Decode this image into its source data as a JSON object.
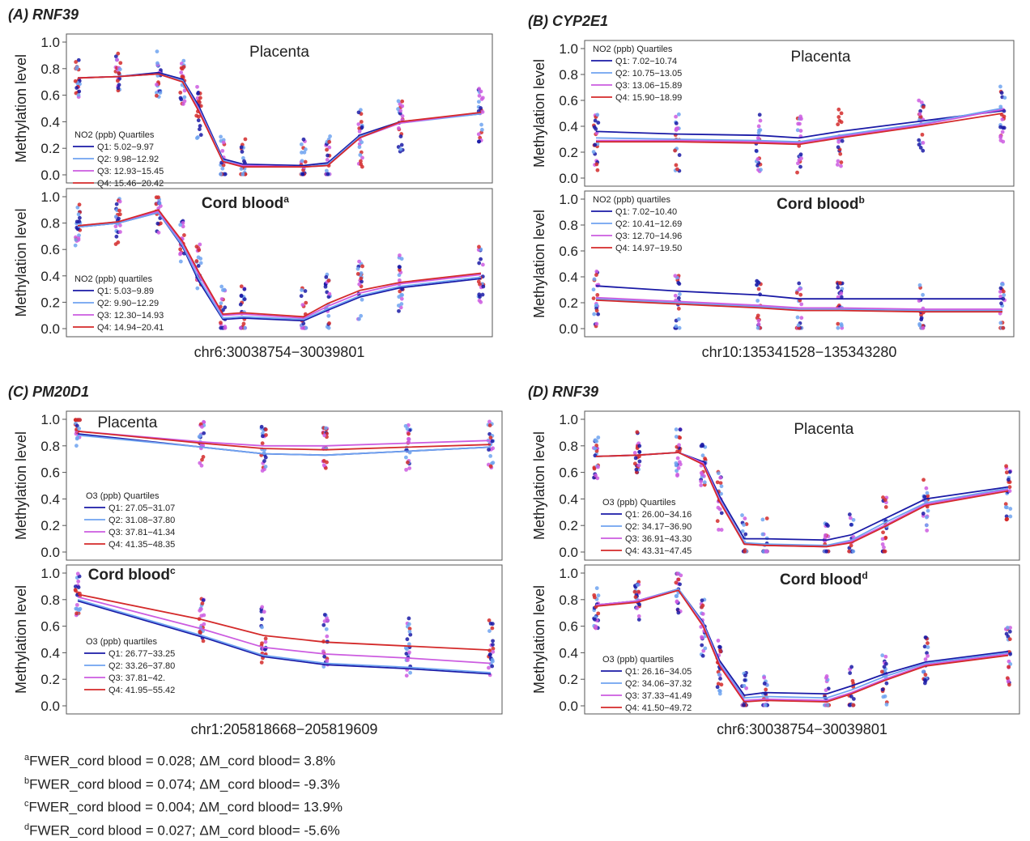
{
  "panels": [
    {
      "title": "(A) RNF39"
    },
    {
      "title": "(B) CYP2E1"
    },
    {
      "title": "(C) PM20D1"
    },
    {
      "title": "(D) RNF39"
    }
  ],
  "footnotes": [
    {
      "sup": "a",
      "text": "FWER_cord blood = 0.028; ΔM_cord blood= 3.8%"
    },
    {
      "sup": "b",
      "text": "FWER_cord blood = 0.074; ΔM_cord blood= -9.3%"
    },
    {
      "sup": "c",
      "text": "FWER_cord blood = 0.004; ΔM_cord blood= 13.9%"
    },
    {
      "sup": "d",
      "text": "FWER_cord blood = 0.027; ΔM_cord blood= -5.6%"
    }
  ],
  "colors": {
    "Q1": "#1a1aa6",
    "Q2": "#6fa3f0",
    "Q3": "#cc5ce0",
    "Q4": "#d42a2a"
  },
  "chart_data": [
    {
      "type": "line",
      "panel": "A",
      "subplot": "top",
      "title": "Placenta",
      "title_bold": false,
      "title_sup": "",
      "ylabel": "Methylation level",
      "ylim": [
        0,
        1.0
      ],
      "yticks": [
        0.0,
        0.2,
        0.4,
        0.6,
        0.8,
        1.0
      ],
      "xlabel": "",
      "legend_title": "NO2 (ppb) Quartiles",
      "legend_loc": "left",
      "x": [
        0.0,
        0.1,
        0.2,
        0.26,
        0.3,
        0.36,
        0.41,
        0.56,
        0.62,
        0.7,
        0.8,
        1.0
      ],
      "series": [
        {
          "name": "Q1: 5.02−9.97",
          "values": [
            0.73,
            0.74,
            0.77,
            0.72,
            0.52,
            0.12,
            0.08,
            0.07,
            0.09,
            0.3,
            0.4,
            0.46
          ]
        },
        {
          "name": "Q2: 9.98−12.92",
          "values": [
            0.73,
            0.74,
            0.76,
            0.71,
            0.5,
            0.11,
            0.07,
            0.06,
            0.08,
            0.29,
            0.39,
            0.46
          ]
        },
        {
          "name": "Q3: 12.93−15.45",
          "values": [
            0.73,
            0.74,
            0.76,
            0.7,
            0.49,
            0.1,
            0.07,
            0.06,
            0.07,
            0.28,
            0.39,
            0.47
          ]
        },
        {
          "name": "Q4: 15.46−20.42",
          "values": [
            0.73,
            0.74,
            0.76,
            0.7,
            0.48,
            0.1,
            0.06,
            0.06,
            0.07,
            0.28,
            0.4,
            0.47
          ]
        }
      ]
    },
    {
      "type": "line",
      "panel": "A",
      "subplot": "bottom",
      "title": "Cord blood",
      "title_bold": true,
      "title_sup": "a",
      "ylabel": "Methylation level",
      "ylim": [
        0,
        1.0
      ],
      "yticks": [
        0.0,
        0.2,
        0.4,
        0.6,
        0.8,
        1.0
      ],
      "xlabel": "chr6:30038754−30039801",
      "legend_title": "NO2 (ppb) quartiles",
      "legend_loc": "left",
      "x": [
        0.0,
        0.1,
        0.2,
        0.26,
        0.3,
        0.36,
        0.41,
        0.56,
        0.62,
        0.7,
        0.8,
        1.0
      ],
      "series": [
        {
          "name": "Q1: 5.03−9.89",
          "values": [
            0.77,
            0.8,
            0.88,
            0.62,
            0.36,
            0.07,
            0.08,
            0.06,
            0.14,
            0.24,
            0.31,
            0.38
          ]
        },
        {
          "name": "Q2: 9.90−12.29",
          "values": [
            0.77,
            0.8,
            0.88,
            0.63,
            0.38,
            0.08,
            0.09,
            0.07,
            0.15,
            0.25,
            0.32,
            0.39
          ]
        },
        {
          "name": "Q3: 12.30−14.93",
          "values": [
            0.78,
            0.81,
            0.89,
            0.65,
            0.41,
            0.1,
            0.11,
            0.08,
            0.17,
            0.27,
            0.34,
            0.41
          ]
        },
        {
          "name": "Q4: 14.94−20.41",
          "values": [
            0.78,
            0.81,
            0.9,
            0.66,
            0.43,
            0.11,
            0.12,
            0.09,
            0.19,
            0.29,
            0.35,
            0.42
          ]
        }
      ]
    },
    {
      "type": "line",
      "panel": "B",
      "subplot": "top",
      "title": "Placenta",
      "title_bold": false,
      "title_sup": "",
      "ylabel": "Methylation level",
      "ylim": [
        0,
        1.0
      ],
      "yticks": [
        0.0,
        0.2,
        0.4,
        0.6,
        0.8,
        1.0
      ],
      "xlabel": "",
      "legend_title": "NO2 (ppb) Quartiles",
      "legend_loc": "top-left",
      "x": [
        0.0,
        0.2,
        0.4,
        0.5,
        0.6,
        0.8,
        1.0
      ],
      "series": [
        {
          "name": "Q1: 7.02−10.74",
          "values": [
            0.36,
            0.34,
            0.33,
            0.31,
            0.36,
            0.44,
            0.52
          ]
        },
        {
          "name": "Q2: 10.75−13.05",
          "values": [
            0.31,
            0.3,
            0.29,
            0.28,
            0.33,
            0.42,
            0.54
          ]
        },
        {
          "name": "Q3: 13.06−15.89",
          "values": [
            0.29,
            0.29,
            0.28,
            0.27,
            0.32,
            0.41,
            0.53
          ]
        },
        {
          "name": "Q4: 15.90−18.99",
          "values": [
            0.28,
            0.28,
            0.27,
            0.26,
            0.31,
            0.4,
            0.5
          ]
        }
      ]
    },
    {
      "type": "line",
      "panel": "B",
      "subplot": "bottom",
      "title": "Cord blood",
      "title_bold": true,
      "title_sup": "b",
      "ylabel": "Methylation level",
      "ylim": [
        0,
        1.0
      ],
      "yticks": [
        0.0,
        0.2,
        0.4,
        0.6,
        0.8,
        1.0
      ],
      "xlabel": "chr10:135341528−135343280",
      "legend_title": "NO2 (ppb) quartiles",
      "legend_loc": "top-left",
      "x": [
        0.0,
        0.2,
        0.4,
        0.5,
        0.6,
        0.8,
        1.0
      ],
      "series": [
        {
          "name": "Q1: 7.02−10.40",
          "values": [
            0.33,
            0.29,
            0.26,
            0.23,
            0.23,
            0.23,
            0.23
          ]
        },
        {
          "name": "Q2: 10.41−12.69",
          "values": [
            0.23,
            0.2,
            0.17,
            0.15,
            0.15,
            0.14,
            0.14
          ]
        },
        {
          "name": "Q3: 12.70−14.96",
          "values": [
            0.24,
            0.21,
            0.18,
            0.16,
            0.16,
            0.15,
            0.15
          ]
        },
        {
          "name": "Q4: 14.97−19.50",
          "values": [
            0.22,
            0.19,
            0.16,
            0.14,
            0.14,
            0.13,
            0.13
          ]
        }
      ]
    },
    {
      "type": "line",
      "panel": "C",
      "subplot": "top",
      "title": "Placenta",
      "title_bold": false,
      "title_sup": "",
      "ylabel": "Methylation level",
      "ylim": [
        0,
        1.0
      ],
      "yticks": [
        0.0,
        0.2,
        0.4,
        0.6,
        0.8,
        1.0
      ],
      "xlabel": "",
      "legend_title": "O3 (ppb) Quartiles",
      "legend_loc": "left",
      "x": [
        0.0,
        0.3,
        0.45,
        0.6,
        0.8,
        1.0
      ],
      "series": [
        {
          "name": "Q1: 27.05−31.07",
          "values": [
            0.89,
            0.79,
            0.74,
            0.73,
            0.76,
            0.79
          ]
        },
        {
          "name": "Q2: 31.08−37.80",
          "values": [
            0.88,
            0.79,
            0.74,
            0.73,
            0.76,
            0.79
          ]
        },
        {
          "name": "Q3: 37.81−41.34",
          "values": [
            0.91,
            0.83,
            0.8,
            0.8,
            0.82,
            0.84
          ]
        },
        {
          "name": "Q4: 41.35−48.35",
          "values": [
            0.91,
            0.82,
            0.78,
            0.77,
            0.79,
            0.81
          ]
        }
      ]
    },
    {
      "type": "line",
      "panel": "C",
      "subplot": "bottom",
      "title": "Cord blood",
      "title_bold": true,
      "title_sup": "c",
      "ylabel": "Methylation level",
      "ylim": [
        0,
        1.0
      ],
      "yticks": [
        0.0,
        0.2,
        0.4,
        0.6,
        0.8,
        1.0
      ],
      "xlabel": "chr1:205818668−205819609",
      "legend_title": "O3 (ppb) quartiles",
      "legend_loc": "left",
      "x": [
        0.0,
        0.3,
        0.45,
        0.6,
        0.8,
        1.0
      ],
      "series": [
        {
          "name": "Q1: 26.77−33.25",
          "values": [
            0.79,
            0.52,
            0.37,
            0.31,
            0.28,
            0.24
          ]
        },
        {
          "name": "Q2: 33.26−37.80",
          "values": [
            0.8,
            0.53,
            0.38,
            0.32,
            0.29,
            0.25
          ]
        },
        {
          "name": "Q3: 37.81−42.",
          "values": [
            0.82,
            0.58,
            0.44,
            0.39,
            0.36,
            0.32
          ]
        },
        {
          "name": "Q4: 41.95−55.42",
          "values": [
            0.84,
            0.65,
            0.53,
            0.48,
            0.45,
            0.42
          ]
        }
      ]
    },
    {
      "type": "line",
      "panel": "D",
      "subplot": "top",
      "title": "Placenta",
      "title_bold": false,
      "title_sup": "",
      "ylabel": "Methylation level",
      "ylim": [
        0,
        1.0
      ],
      "yticks": [
        0.0,
        0.2,
        0.4,
        0.6,
        0.8,
        1.0
      ],
      "xlabel": "",
      "legend_title": "O3 (ppb) Quartiles",
      "legend_loc": "left",
      "x": [
        0.0,
        0.1,
        0.2,
        0.26,
        0.3,
        0.36,
        0.41,
        0.56,
        0.62,
        0.7,
        0.8,
        1.0
      ],
      "series": [
        {
          "name": "Q1: 26.00−34.16",
          "values": [
            0.72,
            0.73,
            0.75,
            0.68,
            0.42,
            0.1,
            0.1,
            0.09,
            0.13,
            0.25,
            0.4,
            0.49
          ]
        },
        {
          "name": "Q2: 34.17−36.90",
          "values": [
            0.72,
            0.73,
            0.75,
            0.67,
            0.4,
            0.07,
            0.06,
            0.05,
            0.09,
            0.22,
            0.37,
            0.48
          ]
        },
        {
          "name": "Q3: 36.91−43.30",
          "values": [
            0.72,
            0.73,
            0.75,
            0.67,
            0.39,
            0.06,
            0.05,
            0.04,
            0.08,
            0.2,
            0.36,
            0.47
          ]
        },
        {
          "name": "Q4: 43.31−47.45",
          "values": [
            0.72,
            0.73,
            0.75,
            0.66,
            0.38,
            0.06,
            0.05,
            0.04,
            0.07,
            0.19,
            0.35,
            0.46
          ]
        }
      ]
    },
    {
      "type": "line",
      "panel": "D",
      "subplot": "bottom",
      "title": "Cord blood",
      "title_bold": true,
      "title_sup": "d",
      "ylabel": "Methylation level",
      "ylim": [
        0,
        1.0
      ],
      "yticks": [
        0.0,
        0.2,
        0.4,
        0.6,
        0.8,
        1.0
      ],
      "xlabel": "chr6:30038754−30039801",
      "legend_title": "O3 (ppb) quartiles",
      "legend_loc": "left",
      "x": [
        0.0,
        0.1,
        0.2,
        0.26,
        0.3,
        0.36,
        0.41,
        0.56,
        0.62,
        0.7,
        0.8,
        1.0
      ],
      "series": [
        {
          "name": "Q1: 26.16−34.05",
          "values": [
            0.76,
            0.79,
            0.88,
            0.63,
            0.34,
            0.08,
            0.1,
            0.09,
            0.15,
            0.24,
            0.33,
            0.41
          ]
        },
        {
          "name": "Q2: 34.06−37.32",
          "values": [
            0.76,
            0.79,
            0.88,
            0.62,
            0.32,
            0.06,
            0.07,
            0.06,
            0.12,
            0.22,
            0.32,
            0.4
          ]
        },
        {
          "name": "Q3: 37.33−41.49",
          "values": [
            0.76,
            0.79,
            0.87,
            0.61,
            0.31,
            0.04,
            0.05,
            0.04,
            0.1,
            0.2,
            0.31,
            0.39
          ]
        },
        {
          "name": "Q4: 41.50−49.72",
          "values": [
            0.75,
            0.78,
            0.87,
            0.6,
            0.3,
            0.03,
            0.04,
            0.03,
            0.09,
            0.19,
            0.3,
            0.38
          ]
        }
      ]
    }
  ]
}
